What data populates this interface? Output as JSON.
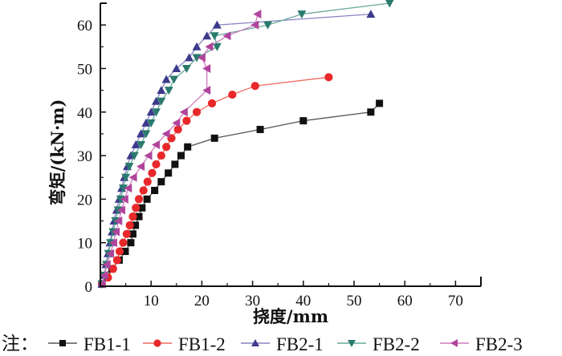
{
  "chart_data": {
    "type": "line",
    "title": "",
    "xlabel": "挠度/mm",
    "ylabel": "弯矩/(kN·m)",
    "xlim": [
      0,
      75
    ],
    "ylim": [
      0,
      65
    ],
    "xticks": [
      10,
      20,
      30,
      40,
      50,
      60,
      70
    ],
    "yticks": [
      0,
      10,
      20,
      30,
      40,
      50,
      60
    ],
    "x_origin_label": "",
    "grid": false,
    "legend_prefix": "注：",
    "legend_position": "bottom",
    "series": [
      {
        "name": "FB1-1",
        "color": "#111111",
        "line_color": "#555555",
        "marker": "square",
        "points": [
          [
            0.3,
            0.5
          ],
          [
            1.2,
            2
          ],
          [
            2.3,
            4
          ],
          [
            3.7,
            6
          ],
          [
            4.9,
            8
          ],
          [
            6.0,
            10
          ],
          [
            6.4,
            12
          ],
          [
            6.9,
            14
          ],
          [
            7.6,
            16
          ],
          [
            8.2,
            18
          ],
          [
            9.2,
            20
          ],
          [
            10.7,
            22
          ],
          [
            12.0,
            24
          ],
          [
            13.4,
            26
          ],
          [
            14.7,
            28
          ],
          [
            15.9,
            30
          ],
          [
            17.2,
            32
          ],
          [
            22.5,
            34
          ],
          [
            31.5,
            36
          ],
          [
            40.0,
            38
          ],
          [
            53.3,
            40
          ],
          [
            55.0,
            42
          ]
        ]
      },
      {
        "name": "FB1-2",
        "color": "#e8282a",
        "line_color": "#ee6a60",
        "marker": "circle",
        "points": [
          [
            0.3,
            0.5
          ],
          [
            1.5,
            2
          ],
          [
            2.5,
            4
          ],
          [
            3.3,
            6
          ],
          [
            3.8,
            8
          ],
          [
            4.5,
            10
          ],
          [
            5.2,
            12
          ],
          [
            5.8,
            14
          ],
          [
            6.4,
            16
          ],
          [
            7.0,
            18
          ],
          [
            7.6,
            20
          ],
          [
            8.5,
            22
          ],
          [
            9.3,
            24
          ],
          [
            10.2,
            26
          ],
          [
            11.0,
            28
          ],
          [
            12.0,
            30
          ],
          [
            13.0,
            32
          ],
          [
            14.0,
            34
          ],
          [
            15.3,
            36
          ],
          [
            17.0,
            38
          ],
          [
            19.0,
            40
          ],
          [
            22.0,
            42
          ],
          [
            26.0,
            44
          ],
          [
            30.5,
            46
          ],
          [
            45.0,
            48
          ]
        ]
      },
      {
        "name": "FB2-1",
        "color": "#3d3a8c",
        "line_color": "#8883c2",
        "marker": "triangle-up",
        "points": [
          [
            0.3,
            0.5
          ],
          [
            0.8,
            2.5
          ],
          [
            1.1,
            5
          ],
          [
            1.5,
            7.5
          ],
          [
            1.9,
            10
          ],
          [
            2.3,
            12.5
          ],
          [
            2.7,
            15
          ],
          [
            3.2,
            17.5
          ],
          [
            3.7,
            20
          ],
          [
            4.2,
            22.5
          ],
          [
            4.7,
            25
          ],
          [
            5.3,
            27.5
          ],
          [
            6.0,
            30
          ],
          [
            7.0,
            32.5
          ],
          [
            8.0,
            35
          ],
          [
            9.0,
            37.5
          ],
          [
            10.0,
            40
          ],
          [
            11.0,
            42.5
          ],
          [
            12.0,
            45
          ],
          [
            13.0,
            47.5
          ],
          [
            15.0,
            50
          ],
          [
            17.5,
            52.5
          ],
          [
            19.0,
            55
          ],
          [
            21.0,
            57.5
          ],
          [
            23.0,
            60
          ],
          [
            53.3,
            62.5
          ]
        ]
      },
      {
        "name": "FB2-2",
        "color": "#2a7a6e",
        "line_color": "#6aa89d",
        "marker": "triangle-down",
        "points": [
          [
            0.3,
            0.5
          ],
          [
            0.8,
            2.5
          ],
          [
            1.2,
            5
          ],
          [
            1.6,
            7.5
          ],
          [
            2.0,
            10
          ],
          [
            2.5,
            12.5
          ],
          [
            3.0,
            15
          ],
          [
            3.5,
            17.5
          ],
          [
            4.0,
            20
          ],
          [
            4.5,
            22.5
          ],
          [
            5.0,
            25
          ],
          [
            5.7,
            27.5
          ],
          [
            6.7,
            30
          ],
          [
            8.0,
            32.5
          ],
          [
            9.0,
            35
          ],
          [
            10.0,
            37.5
          ],
          [
            11.0,
            40
          ],
          [
            12.0,
            42.5
          ],
          [
            13.5,
            45
          ],
          [
            14.5,
            47.5
          ],
          [
            17.0,
            50
          ],
          [
            19.0,
            52.5
          ],
          [
            23.0,
            55
          ],
          [
            22.5,
            57.5
          ],
          [
            33.0,
            60
          ],
          [
            39.7,
            62.5
          ],
          [
            57.0,
            65
          ]
        ]
      },
      {
        "name": "FB2-3",
        "color": "#b0449c",
        "line_color": "#d07cc0",
        "marker": "triangle-left",
        "points": [
          [
            0.3,
            0.5
          ],
          [
            0.8,
            2.5
          ],
          [
            1.3,
            5
          ],
          [
            2.0,
            7.5
          ],
          [
            2.6,
            10
          ],
          [
            3.1,
            12.5
          ],
          [
            3.6,
            15
          ],
          [
            4.2,
            17.5
          ],
          [
            4.8,
            20
          ],
          [
            5.5,
            22.5
          ],
          [
            6.5,
            25
          ],
          [
            8.0,
            27.5
          ],
          [
            9.5,
            30
          ],
          [
            11.0,
            32.5
          ],
          [
            13.0,
            35
          ],
          [
            15.0,
            37.5
          ],
          [
            16.5,
            40
          ],
          [
            21.0,
            45
          ],
          [
            21.0,
            50
          ],
          [
            20.0,
            52.5
          ],
          [
            21.5,
            55
          ],
          [
            25.0,
            57.5
          ],
          [
            30.5,
            60
          ],
          [
            31.0,
            62.5
          ]
        ]
      }
    ]
  }
}
